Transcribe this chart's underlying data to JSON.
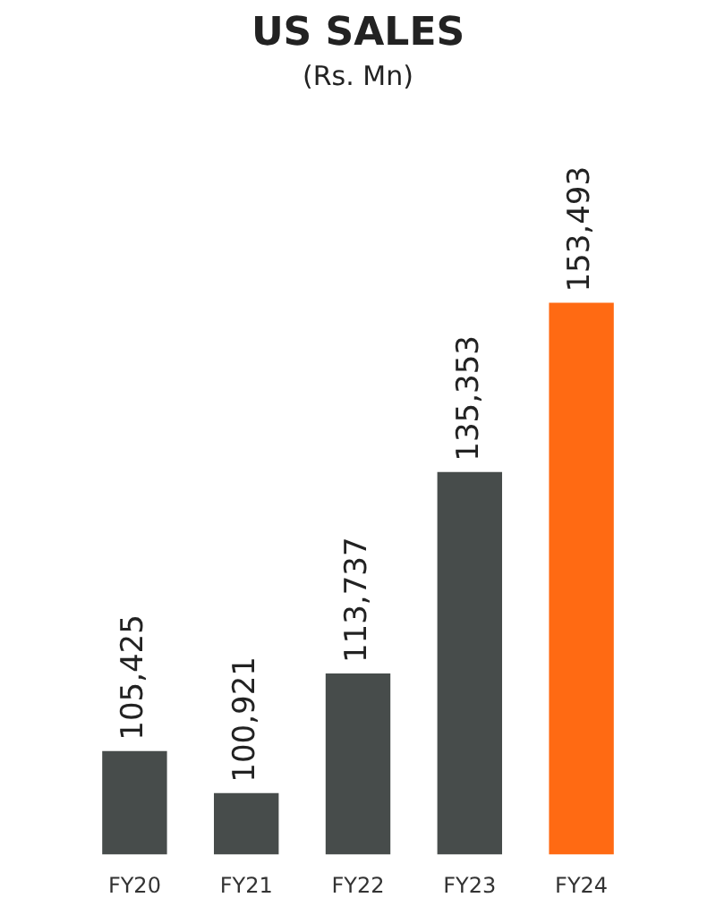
{
  "chart_data": {
    "type": "bar",
    "title": "US SALES",
    "subtitle": "(Rs. Mn)",
    "categories": [
      "FY20",
      "FY21",
      "FY22",
      "FY23",
      "FY24"
    ],
    "values": [
      105425,
      100921,
      113737,
      135353,
      153493
    ],
    "colors": [
      "#474c4b",
      "#474c4b",
      "#474c4b",
      "#474c4b",
      "#ff6a13"
    ],
    "value_labels": [
      "105,425",
      "100,921",
      "113,737",
      "135,353",
      "153,493"
    ],
    "tick_labels": "x",
    "grid": false,
    "legend": false
  }
}
